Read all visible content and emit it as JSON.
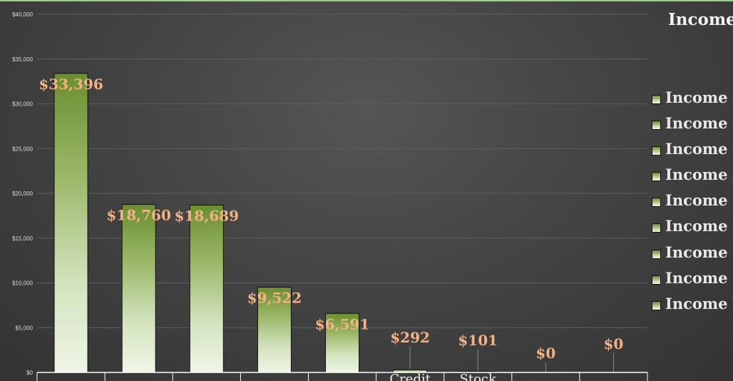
{
  "chart_data": {
    "type": "bar",
    "title": "Income",
    "categories": [
      "",
      "",
      "",
      "",
      "",
      "Credit",
      "Stock",
      "",
      ""
    ],
    "values": [
      33396,
      18760,
      18689,
      9522,
      6591,
      292,
      101,
      0,
      0
    ],
    "data_labels": [
      "$33,396",
      "$18,760",
      "$18,689",
      "$9,522",
      "$6,591",
      "$292",
      "$101",
      "$0",
      "$0"
    ],
    "yticks": [
      "$0",
      "$5,000",
      "$10,000",
      "$15,000",
      "$20,000",
      "$25,000",
      "$30,000",
      "$35,000",
      "$40,000"
    ],
    "ylim": [
      0,
      40000
    ],
    "grid": true,
    "legend_position": "right",
    "legend": [
      "Income I",
      "Income I",
      "Income I",
      "Income A",
      "Income I",
      "Income C",
      "Income S",
      "Income S",
      "Income Y"
    ],
    "colors": {
      "bar_top": "#6b8e2e",
      "bar_bottom": "#eef5e6",
      "data_label": "#f4b183",
      "axis_text": "#d9d9d9",
      "gridline": "#5e5e5e"
    }
  }
}
